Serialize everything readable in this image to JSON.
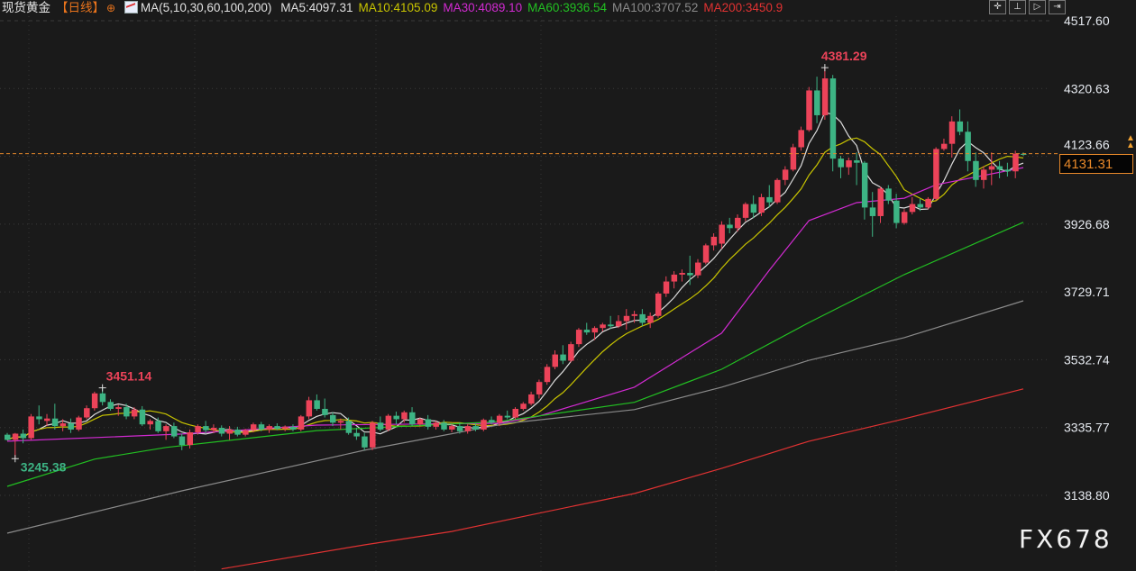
{
  "header": {
    "title": "现货黄金",
    "period": "【日线】",
    "add_icon": "circle-plus-icon",
    "ma_icon": "indicator-chart-icon",
    "ma_params": "MA(5,10,30,60,100,200)",
    "ma_values": [
      {
        "label": "MA5:4097.31",
        "color": "#e0e0e0"
      },
      {
        "label": "MA10:4105.09",
        "color": "#c8c400"
      },
      {
        "label": "MA30:4089.10",
        "color": "#d22ad2"
      },
      {
        "label": "MA60:3936.54",
        "color": "#22c022"
      },
      {
        "label": "MA100:3707.52",
        "color": "#8a8a8a"
      },
      {
        "label": "MA200:3450.9",
        "color": "#e03232"
      }
    ]
  },
  "toolbar": {
    "icons": [
      "crosshair-icon",
      "range-select-icon",
      "play-icon",
      "exit-icon"
    ]
  },
  "current_price": "4131.31",
  "watermark": "FX678",
  "chart_data": {
    "type": "candlestick",
    "y_ticks": [
      "4517.60",
      "4320.63",
      "4123.66",
      "3926.68",
      "3729.71",
      "3532.74",
      "3335.77",
      "3138.80"
    ],
    "ylim": [
      3138.8,
      4517.6
    ],
    "grid": true,
    "colors": {
      "up": "#ec4359",
      "down": "#3db484",
      "last_price_line": "#e8892a"
    },
    "annotations": {
      "high_label": "4381.29",
      "local_high_label": "3451.14",
      "low_label": "3245.38"
    },
    "candles_ohlc": [
      [
        3315,
        3320,
        3298,
        3300
      ],
      [
        3300,
        3320,
        3245.38,
        3318
      ],
      [
        3318,
        3330,
        3290,
        3305
      ],
      [
        3305,
        3375,
        3300,
        3368
      ],
      [
        3368,
        3400,
        3345,
        3360
      ],
      [
        3355,
        3375,
        3340,
        3362
      ],
      [
        3362,
        3405,
        3330,
        3340
      ],
      [
        3340,
        3360,
        3325,
        3348
      ],
      [
        3348,
        3362,
        3320,
        3330
      ],
      [
        3330,
        3370,
        3325,
        3365
      ],
      [
        3365,
        3400,
        3360,
        3392
      ],
      [
        3392,
        3440,
        3385,
        3435
      ],
      [
        3435,
        3451.14,
        3400,
        3410
      ],
      [
        3410,
        3418,
        3385,
        3390
      ],
      [
        3390,
        3402,
        3370,
        3395
      ],
      [
        3395,
        3405,
        3360,
        3368
      ],
      [
        3368,
        3395,
        3360,
        3388
      ],
      [
        3388,
        3398,
        3340,
        3345
      ],
      [
        3345,
        3360,
        3330,
        3355
      ],
      [
        3355,
        3365,
        3320,
        3325
      ],
      [
        3325,
        3345,
        3300,
        3340
      ],
      [
        3340,
        3350,
        3305,
        3310
      ],
      [
        3310,
        3318,
        3270,
        3285
      ],
      [
        3285,
        3330,
        3275,
        3322
      ],
      [
        3322,
        3345,
        3315,
        3340
      ],
      [
        3340,
        3355,
        3320,
        3328
      ],
      [
        3328,
        3345,
        3320,
        3335
      ],
      [
        3335,
        3342,
        3310,
        3318
      ],
      [
        3318,
        3340,
        3300,
        3330
      ],
      [
        3330,
        3338,
        3310,
        3315
      ],
      [
        3315,
        3332,
        3310,
        3328
      ],
      [
        3328,
        3350,
        3322,
        3345
      ],
      [
        3345,
        3352,
        3325,
        3330
      ],
      [
        3330,
        3345,
        3320,
        3340
      ],
      [
        3340,
        3348,
        3328,
        3332
      ],
      [
        3332,
        3342,
        3325,
        3338
      ],
      [
        3338,
        3345,
        3325,
        3330
      ],
      [
        3330,
        3372,
        3325,
        3368
      ],
      [
        3368,
        3425,
        3360,
        3415
      ],
      [
        3415,
        3432,
        3385,
        3390
      ],
      [
        3390,
        3420,
        3365,
        3372
      ],
      [
        3372,
        3380,
        3340,
        3350
      ],
      [
        3350,
        3362,
        3330,
        3355
      ],
      [
        3355,
        3365,
        3315,
        3320
      ],
      [
        3320,
        3335,
        3300,
        3310
      ],
      [
        3310,
        3320,
        3270,
        3278
      ],
      [
        3278,
        3355,
        3270,
        3350
      ],
      [
        3350,
        3368,
        3325,
        3330
      ],
      [
        3330,
        3375,
        3325,
        3370
      ],
      [
        3370,
        3382,
        3345,
        3360
      ],
      [
        3360,
        3385,
        3350,
        3380
      ],
      [
        3380,
        3395,
        3340,
        3345
      ],
      [
        3345,
        3365,
        3340,
        3360
      ],
      [
        3360,
        3372,
        3330,
        3338
      ],
      [
        3338,
        3355,
        3330,
        3350
      ],
      [
        3350,
        3358,
        3325,
        3330
      ],
      [
        3330,
        3345,
        3322,
        3340
      ],
      [
        3340,
        3350,
        3318,
        3325
      ],
      [
        3325,
        3345,
        3318,
        3340
      ],
      [
        3340,
        3348,
        3325,
        3330
      ],
      [
        3330,
        3362,
        3325,
        3358
      ],
      [
        3358,
        3368,
        3345,
        3350
      ],
      [
        3350,
        3375,
        3340,
        3370
      ],
      [
        3370,
        3385,
        3360,
        3365
      ],
      [
        3365,
        3395,
        3360,
        3390
      ],
      [
        3390,
        3410,
        3385,
        3405
      ],
      [
        3405,
        3440,
        3400,
        3432
      ],
      [
        3432,
        3475,
        3420,
        3468
      ],
      [
        3468,
        3520,
        3460,
        3512
      ],
      [
        3512,
        3560,
        3505,
        3548
      ],
      [
        3548,
        3575,
        3520,
        3530
      ],
      [
        3530,
        3585,
        3525,
        3578
      ],
      [
        3578,
        3625,
        3570,
        3620
      ],
      [
        3620,
        3640,
        3605,
        3612
      ],
      [
        3612,
        3630,
        3590,
        3625
      ],
      [
        3625,
        3640,
        3615,
        3635
      ],
      [
        3635,
        3660,
        3622,
        3630
      ],
      [
        3630,
        3662,
        3625,
        3645
      ],
      [
        3645,
        3680,
        3620,
        3660
      ],
      [
        3660,
        3675,
        3640,
        3665
      ],
      [
        3665,
        3680,
        3630,
        3640
      ],
      [
        3640,
        3670,
        3625,
        3660
      ],
      [
        3660,
        3730,
        3655,
        3725
      ],
      [
        3725,
        3775,
        3715,
        3760
      ],
      [
        3760,
        3790,
        3740,
        3780
      ],
      [
        3780,
        3795,
        3760,
        3785
      ],
      [
        3785,
        3835,
        3750,
        3778
      ],
      [
        3778,
        3825,
        3770,
        3815
      ],
      [
        3815,
        3870,
        3810,
        3865
      ],
      [
        3865,
        3900,
        3850,
        3890
      ],
      [
        3870,
        3935,
        3855,
        3925
      ],
      [
        3925,
        3945,
        3900,
        3915
      ],
      [
        3915,
        3955,
        3905,
        3945
      ],
      [
        3945,
        3990,
        3935,
        3985
      ],
      [
        3985,
        4010,
        3945,
        3960
      ],
      [
        3960,
        4015,
        3950,
        4005
      ],
      [
        4005,
        4040,
        3975,
        3990
      ],
      [
        3990,
        4060,
        3985,
        4055
      ],
      [
        4055,
        4095,
        4040,
        4085
      ],
      [
        4085,
        4160,
        4080,
        4150
      ],
      [
        4150,
        4210,
        4140,
        4200
      ],
      [
        4200,
        4325,
        4195,
        4315
      ],
      [
        4315,
        4355,
        4220,
        4243
      ],
      [
        4243,
        4381.29,
        4230,
        4350
      ],
      [
        4350,
        4360,
        4080,
        4117
      ],
      [
        4117,
        4125,
        4060,
        4092
      ],
      [
        4092,
        4120,
        4070,
        4112
      ],
      [
        4112,
        4135,
        4040,
        4105
      ],
      [
        4105,
        4110,
        3940,
        3975
      ],
      [
        3975,
        4020,
        3890,
        3950
      ],
      [
        3950,
        4035,
        3930,
        4030
      ],
      [
        4030,
        4040,
        3985,
        3995
      ],
      [
        3995,
        4015,
        3915,
        3930
      ],
      [
        3930,
        3970,
        3925,
        3962
      ],
      [
        3962,
        4005,
        3955,
        3985
      ],
      [
        3985,
        4000,
        3965,
        3975
      ],
      [
        3975,
        4005,
        3970,
        4000
      ],
      [
        4000,
        4150,
        3995,
        4145
      ],
      [
        4145,
        4175,
        4140,
        4160
      ],
      [
        4160,
        4240,
        4120,
        4225
      ],
      [
        4225,
        4260,
        4185,
        4195
      ],
      [
        4195,
        4225,
        4080,
        4110
      ],
      [
        4110,
        4135,
        4035,
        4055
      ],
      [
        4055,
        4095,
        4030,
        4085
      ],
      [
        4085,
        4135,
        4040,
        4095
      ],
      [
        4095,
        4110,
        4060,
        4085
      ],
      [
        4085,
        4105,
        4065,
        4080
      ],
      [
        4080,
        4140,
        4060,
        4131.31
      ],
      [
        4131,
        4135,
        4125,
        4128
      ]
    ],
    "moving_averages": [
      {
        "name": "MA5",
        "period": 5,
        "color": "#dcdcdc"
      },
      {
        "name": "MA10",
        "period": 10,
        "color": "#c8c400"
      },
      {
        "name": "MA30",
        "color": "#d22ad2",
        "points": [
          [
            0,
            3296
          ],
          [
            22,
            3317
          ],
          [
            39,
            3343
          ],
          [
            62,
            3348
          ],
          [
            67,
            3369
          ],
          [
            79,
            3453
          ],
          [
            90,
            3610
          ],
          [
            96,
            3793
          ],
          [
            101,
            3937
          ],
          [
            107,
            3989
          ],
          [
            113,
            4002
          ],
          [
            117,
            4041
          ],
          [
            128,
            4091
          ]
        ]
      },
      {
        "name": "MA60",
        "color": "#22c022",
        "points": [
          [
            0,
            3165
          ],
          [
            11,
            3244
          ],
          [
            20,
            3278
          ],
          [
            39,
            3327
          ],
          [
            62,
            3353
          ],
          [
            79,
            3409
          ],
          [
            90,
            3505
          ],
          [
            101,
            3641
          ],
          [
            113,
            3780
          ],
          [
            128,
            3932
          ]
        ]
      },
      {
        "name": "MA100",
        "color": "#8a8a8a",
        "points": [
          [
            0,
            3029
          ],
          [
            22,
            3152
          ],
          [
            45,
            3270
          ],
          [
            63,
            3348
          ],
          [
            79,
            3388
          ],
          [
            90,
            3453
          ],
          [
            101,
            3531
          ],
          [
            113,
            3597
          ],
          [
            128,
            3704
          ]
        ]
      },
      {
        "name": "MA200",
        "color": "#e03232",
        "points": [
          [
            27,
            2925
          ],
          [
            45,
            2995
          ],
          [
            56,
            3034
          ],
          [
            67,
            3087
          ],
          [
            79,
            3144
          ],
          [
            90,
            3217
          ],
          [
            101,
            3296
          ],
          [
            113,
            3361
          ],
          [
            128,
            3448
          ]
        ]
      }
    ]
  }
}
